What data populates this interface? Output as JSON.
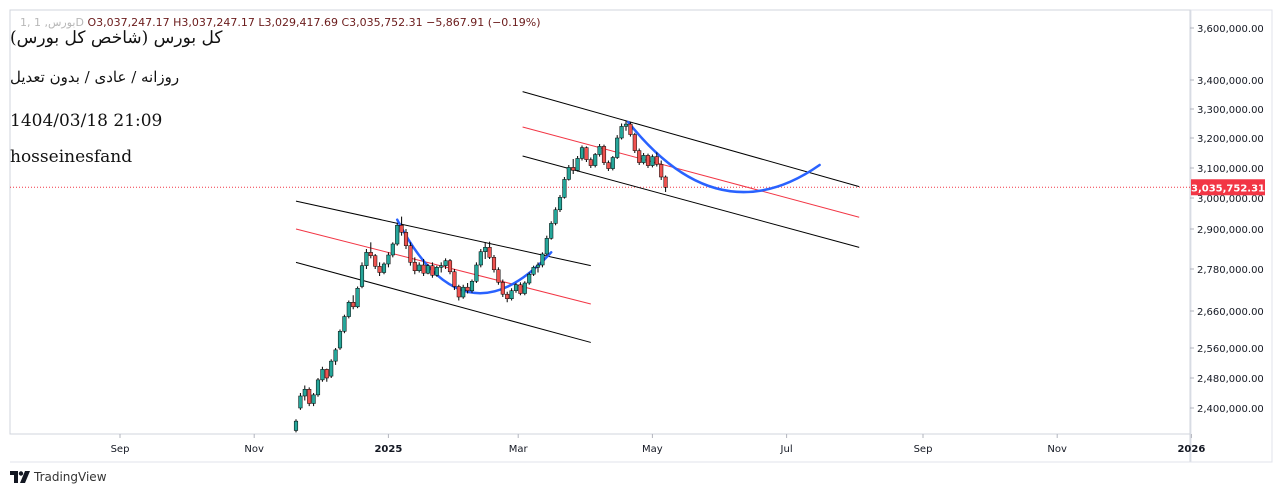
{
  "legend": {
    "prefix": "1, بورس, 1D",
    "ohlc_text": "O3,037,247.17  H3,037,247.17  L3,029,417.69  C3,035,752.31  −5,867.91 (−0.19%)"
  },
  "overlay": {
    "title": "کل بورس (شاخص کل بورس)",
    "subtitle": "روزانه / عادی / بدون تعدیل",
    "date": "1404/03/18 21:09",
    "author": "hosseinesfand"
  },
  "brand": {
    "label": "TradingView",
    "icon": "tradingview-logo-icon"
  },
  "colors": {
    "up": "#26a69a",
    "down": "#ef5350",
    "curve": "#2962ff",
    "channel": "#000000",
    "midline": "#f23645",
    "last_price_badge": "#f23645"
  },
  "chart_data": {
    "type": "candlestick",
    "last_price": 3035752.31,
    "last_price_label": "3,035,752.31",
    "y_ticks": [
      {
        "v": 3600000,
        "label": "3,600,000.00"
      },
      {
        "v": 3400000,
        "label": "3,400,000.00"
      },
      {
        "v": 3300000,
        "label": "3,300,000.00"
      },
      {
        "v": 3200000,
        "label": "3,200,000.00"
      },
      {
        "v": 3100000,
        "label": "3,100,000.00"
      },
      {
        "v": 3000000,
        "label": "3,000,000.00"
      },
      {
        "v": 2900000,
        "label": "2,900,000.00"
      },
      {
        "v": 2780000,
        "label": "2,780,000.00"
      },
      {
        "v": 2660000,
        "label": "2,660,000.00"
      },
      {
        "v": 2560000,
        "label": "2,560,000.00"
      },
      {
        "v": 2480000,
        "label": "2,480,000.00"
      },
      {
        "v": 2400000,
        "label": "2,400,000.00"
      }
    ],
    "x_ticks": [
      {
        "t": "2024-09-01",
        "label": "Sep",
        "bold": false
      },
      {
        "t": "2024-11-01",
        "label": "Nov",
        "bold": false
      },
      {
        "t": "2025-01-01",
        "label": "2025",
        "bold": true
      },
      {
        "t": "2025-03-01",
        "label": "Mar",
        "bold": false
      },
      {
        "t": "2025-05-01",
        "label": "May",
        "bold": false
      },
      {
        "t": "2025-07-01",
        "label": "Jul",
        "bold": false
      },
      {
        "t": "2025-09-01",
        "label": "Sep",
        "bold": false
      },
      {
        "t": "2025-11-01",
        "label": "Nov",
        "bold": false
      },
      {
        "t": "2026-01-01",
        "label": "2026",
        "bold": true
      }
    ],
    "candles": [
      {
        "t": "2024-11-20",
        "o": 2340000,
        "h": 2370000,
        "l": 2335000,
        "c": 2365000
      },
      {
        "t": "2024-11-22",
        "o": 2400000,
        "h": 2440000,
        "l": 2395000,
        "c": 2432000
      },
      {
        "t": "2024-11-24",
        "o": 2432000,
        "h": 2460000,
        "l": 2420000,
        "c": 2450000
      },
      {
        "t": "2024-11-26",
        "o": 2450000,
        "h": 2455000,
        "l": 2405000,
        "c": 2412000
      },
      {
        "t": "2024-11-28",
        "o": 2412000,
        "h": 2440000,
        "l": 2405000,
        "c": 2435000
      },
      {
        "t": "2024-11-30",
        "o": 2435000,
        "h": 2480000,
        "l": 2430000,
        "c": 2475000
      },
      {
        "t": "2024-12-02",
        "o": 2475000,
        "h": 2510000,
        "l": 2470000,
        "c": 2503000
      },
      {
        "t": "2024-12-04",
        "o": 2503000,
        "h": 2505000,
        "l": 2470000,
        "c": 2480000
      },
      {
        "t": "2024-12-06",
        "o": 2485000,
        "h": 2530000,
        "l": 2480000,
        "c": 2525000
      },
      {
        "t": "2024-12-08",
        "o": 2525000,
        "h": 2560000,
        "l": 2515000,
        "c": 2555000
      },
      {
        "t": "2024-12-10",
        "o": 2560000,
        "h": 2610000,
        "l": 2555000,
        "c": 2605000
      },
      {
        "t": "2024-12-12",
        "o": 2605000,
        "h": 2650000,
        "l": 2600000,
        "c": 2645000
      },
      {
        "t": "2024-12-14",
        "o": 2645000,
        "h": 2690000,
        "l": 2640000,
        "c": 2685000
      },
      {
        "t": "2024-12-16",
        "o": 2685000,
        "h": 2705000,
        "l": 2665000,
        "c": 2672000
      },
      {
        "t": "2024-12-18",
        "o": 2672000,
        "h": 2730000,
        "l": 2668000,
        "c": 2725000
      },
      {
        "t": "2024-12-20",
        "o": 2730000,
        "h": 2800000,
        "l": 2725000,
        "c": 2790000
      },
      {
        "t": "2024-12-22",
        "o": 2790000,
        "h": 2840000,
        "l": 2780000,
        "c": 2830000
      },
      {
        "t": "2024-12-24",
        "o": 2830000,
        "h": 2860000,
        "l": 2812000,
        "c": 2820000
      },
      {
        "t": "2024-12-26",
        "o": 2820000,
        "h": 2825000,
        "l": 2780000,
        "c": 2788000
      },
      {
        "t": "2024-12-28",
        "o": 2788000,
        "h": 2800000,
        "l": 2760000,
        "c": 2770000
      },
      {
        "t": "2024-12-30",
        "o": 2770000,
        "h": 2800000,
        "l": 2765000,
        "c": 2795000
      },
      {
        "t": "2025-01-01",
        "o": 2795000,
        "h": 2830000,
        "l": 2785000,
        "c": 2822000
      },
      {
        "t": "2025-01-03",
        "o": 2822000,
        "h": 2860000,
        "l": 2815000,
        "c": 2855000
      },
      {
        "t": "2025-01-05",
        "o": 2855000,
        "h": 2920000,
        "l": 2850000,
        "c": 2912000
      },
      {
        "t": "2025-01-07",
        "o": 2912000,
        "h": 2940000,
        "l": 2880000,
        "c": 2890000
      },
      {
        "t": "2025-01-09",
        "o": 2890000,
        "h": 2900000,
        "l": 2840000,
        "c": 2850000
      },
      {
        "t": "2025-01-11",
        "o": 2850000,
        "h": 2860000,
        "l": 2790000,
        "c": 2800000
      },
      {
        "t": "2025-01-13",
        "o": 2800000,
        "h": 2815000,
        "l": 2765000,
        "c": 2775000
      },
      {
        "t": "2025-01-15",
        "o": 2775000,
        "h": 2800000,
        "l": 2770000,
        "c": 2792000
      },
      {
        "t": "2025-01-17",
        "o": 2792000,
        "h": 2810000,
        "l": 2760000,
        "c": 2768000
      },
      {
        "t": "2025-01-19",
        "o": 2768000,
        "h": 2795000,
        "l": 2765000,
        "c": 2790000
      },
      {
        "t": "2025-01-21",
        "o": 2790000,
        "h": 2800000,
        "l": 2755000,
        "c": 2762000
      },
      {
        "t": "2025-01-23",
        "o": 2762000,
        "h": 2790000,
        "l": 2758000,
        "c": 2785000
      },
      {
        "t": "2025-01-25",
        "o": 2785000,
        "h": 2800000,
        "l": 2770000,
        "c": 2790000
      },
      {
        "t": "2025-01-27",
        "o": 2790000,
        "h": 2812000,
        "l": 2780000,
        "c": 2805000
      },
      {
        "t": "2025-01-29",
        "o": 2805000,
        "h": 2810000,
        "l": 2765000,
        "c": 2772000
      },
      {
        "t": "2025-01-31",
        "o": 2772000,
        "h": 2780000,
        "l": 2720000,
        "c": 2730000
      },
      {
        "t": "2025-02-02",
        "o": 2730000,
        "h": 2735000,
        "l": 2690000,
        "c": 2700000
      },
      {
        "t": "2025-02-04",
        "o": 2700000,
        "h": 2735000,
        "l": 2695000,
        "c": 2728000
      },
      {
        "t": "2025-02-06",
        "o": 2728000,
        "h": 2740000,
        "l": 2710000,
        "c": 2718000
      },
      {
        "t": "2025-02-08",
        "o": 2718000,
        "h": 2750000,
        "l": 2712000,
        "c": 2745000
      },
      {
        "t": "2025-02-10",
        "o": 2745000,
        "h": 2800000,
        "l": 2740000,
        "c": 2792000
      },
      {
        "t": "2025-02-12",
        "o": 2792000,
        "h": 2840000,
        "l": 2785000,
        "c": 2832000
      },
      {
        "t": "2025-02-14",
        "o": 2832000,
        "h": 2860000,
        "l": 2810000,
        "c": 2845000
      },
      {
        "t": "2025-02-16",
        "o": 2845000,
        "h": 2862000,
        "l": 2810000,
        "c": 2815000
      },
      {
        "t": "2025-02-18",
        "o": 2815000,
        "h": 2822000,
        "l": 2770000,
        "c": 2778000
      },
      {
        "t": "2025-02-20",
        "o": 2778000,
        "h": 2785000,
        "l": 2735000,
        "c": 2742000
      },
      {
        "t": "2025-02-22",
        "o": 2742000,
        "h": 2750000,
        "l": 2700000,
        "c": 2708000
      },
      {
        "t": "2025-02-24",
        "o": 2708000,
        "h": 2715000,
        "l": 2685000,
        "c": 2695000
      },
      {
        "t": "2025-02-26",
        "o": 2695000,
        "h": 2725000,
        "l": 2690000,
        "c": 2718000
      },
      {
        "t": "2025-02-28",
        "o": 2718000,
        "h": 2740000,
        "l": 2712000,
        "c": 2735000
      },
      {
        "t": "2025-03-02",
        "o": 2735000,
        "h": 2742000,
        "l": 2705000,
        "c": 2710000
      },
      {
        "t": "2025-03-04",
        "o": 2710000,
        "h": 2745000,
        "l": 2705000,
        "c": 2740000
      },
      {
        "t": "2025-03-06",
        "o": 2740000,
        "h": 2770000,
        "l": 2735000,
        "c": 2765000
      },
      {
        "t": "2025-03-08",
        "o": 2765000,
        "h": 2790000,
        "l": 2760000,
        "c": 2785000
      },
      {
        "t": "2025-03-10",
        "o": 2785000,
        "h": 2800000,
        "l": 2770000,
        "c": 2792000
      },
      {
        "t": "2025-03-12",
        "o": 2792000,
        "h": 2830000,
        "l": 2785000,
        "c": 2825000
      },
      {
        "t": "2025-03-14",
        "o": 2825000,
        "h": 2880000,
        "l": 2820000,
        "c": 2872000
      },
      {
        "t": "2025-03-16",
        "o": 2872000,
        "h": 2925000,
        "l": 2868000,
        "c": 2918000
      },
      {
        "t": "2025-03-18",
        "o": 2918000,
        "h": 2970000,
        "l": 2912000,
        "c": 2962000
      },
      {
        "t": "2025-03-20",
        "o": 2962000,
        "h": 3010000,
        "l": 2955000,
        "c": 3002000
      },
      {
        "t": "2025-03-22",
        "o": 3002000,
        "h": 3070000,
        "l": 2998000,
        "c": 3062000
      },
      {
        "t": "2025-03-24",
        "o": 3062000,
        "h": 3110000,
        "l": 3058000,
        "c": 3102000
      },
      {
        "t": "2025-03-26",
        "o": 3102000,
        "h": 3130000,
        "l": 3080000,
        "c": 3092000
      },
      {
        "t": "2025-03-28",
        "o": 3092000,
        "h": 3140000,
        "l": 3088000,
        "c": 3132000
      },
      {
        "t": "2025-03-30",
        "o": 3132000,
        "h": 3175000,
        "l": 3125000,
        "c": 3168000
      },
      {
        "t": "2025-04-01",
        "o": 3168000,
        "h": 3172000,
        "l": 3120000,
        "c": 3128000
      },
      {
        "t": "2025-04-03",
        "o": 3128000,
        "h": 3135000,
        "l": 3100000,
        "c": 3108000
      },
      {
        "t": "2025-04-05",
        "o": 3108000,
        "h": 3150000,
        "l": 3102000,
        "c": 3145000
      },
      {
        "t": "2025-04-07",
        "o": 3145000,
        "h": 3180000,
        "l": 3138000,
        "c": 3172000
      },
      {
        "t": "2025-04-09",
        "o": 3172000,
        "h": 3178000,
        "l": 3110000,
        "c": 3118000
      },
      {
        "t": "2025-04-11",
        "o": 3118000,
        "h": 3125000,
        "l": 3090000,
        "c": 3098000
      },
      {
        "t": "2025-04-13",
        "o": 3098000,
        "h": 3140000,
        "l": 3092000,
        "c": 3135000
      },
      {
        "t": "2025-04-15",
        "o": 3135000,
        "h": 3210000,
        "l": 3130000,
        "c": 3200000
      },
      {
        "t": "2025-04-17",
        "o": 3200000,
        "h": 3250000,
        "l": 3195000,
        "c": 3240000
      },
      {
        "t": "2025-04-19",
        "o": 3240000,
        "h": 3258000,
        "l": 3225000,
        "c": 3248000
      },
      {
        "t": "2025-04-21",
        "o": 3248000,
        "h": 3255000,
        "l": 3205000,
        "c": 3212000
      },
      {
        "t": "2025-04-23",
        "o": 3212000,
        "h": 3218000,
        "l": 3150000,
        "c": 3158000
      },
      {
        "t": "2025-04-25",
        "o": 3158000,
        "h": 3165000,
        "l": 3110000,
        "c": 3118000
      },
      {
        "t": "2025-04-27",
        "o": 3118000,
        "h": 3150000,
        "l": 3112000,
        "c": 3142000
      },
      {
        "t": "2025-04-29",
        "o": 3142000,
        "h": 3148000,
        "l": 3100000,
        "c": 3108000
      },
      {
        "t": "2025-05-01",
        "o": 3108000,
        "h": 3145000,
        "l": 3102000,
        "c": 3138000
      },
      {
        "t": "2025-05-03",
        "o": 3138000,
        "h": 3152000,
        "l": 3105000,
        "c": 3112000
      },
      {
        "t": "2025-05-05",
        "o": 3112000,
        "h": 3125000,
        "l": 3060000,
        "c": 3070000
      },
      {
        "t": "2025-05-07",
        "o": 3070000,
        "h": 3075000,
        "l": 3020000,
        "c": 3035752
      }
    ],
    "drawings": {
      "channels": [
        {
          "upper": [
            {
              "t": "2024-11-20",
              "v": 2990000
            },
            {
              "t": "2025-04-03",
              "v": 2790000
            }
          ],
          "mid": [
            {
              "t": "2024-11-20",
              "v": 2900000
            },
            {
              "t": "2025-04-03",
              "v": 2680000
            }
          ],
          "lower": [
            {
              "t": "2024-11-20",
              "v": 2800000
            },
            {
              "t": "2025-04-03",
              "v": 2575000
            }
          ]
        },
        {
          "upper": [
            {
              "t": "2025-03-03",
              "v": 3360000
            },
            {
              "t": "2025-08-03",
              "v": 3038000
            }
          ],
          "mid": [
            {
              "t": "2025-03-03",
              "v": 3238000
            },
            {
              "t": "2025-08-03",
              "v": 2938000
            }
          ],
          "lower": [
            {
              "t": "2025-03-03",
              "v": 3140000
            },
            {
              "t": "2025-08-03",
              "v": 2845000
            }
          ]
        }
      ],
      "curves": [
        {
          "start": {
            "t": "2025-01-05",
            "v": 2930000
          },
          "control": {
            "t": "2025-02-04",
            "v": 2560000
          },
          "end": {
            "t": "2025-03-16",
            "v": 2830000
          }
        },
        {
          "start": {
            "t": "2025-04-20",
            "v": 3255000
          },
          "control": {
            "t": "2025-05-31",
            "v": 2880000
          },
          "end": {
            "t": "2025-07-16",
            "v": 3110000
          }
        }
      ]
    }
  }
}
